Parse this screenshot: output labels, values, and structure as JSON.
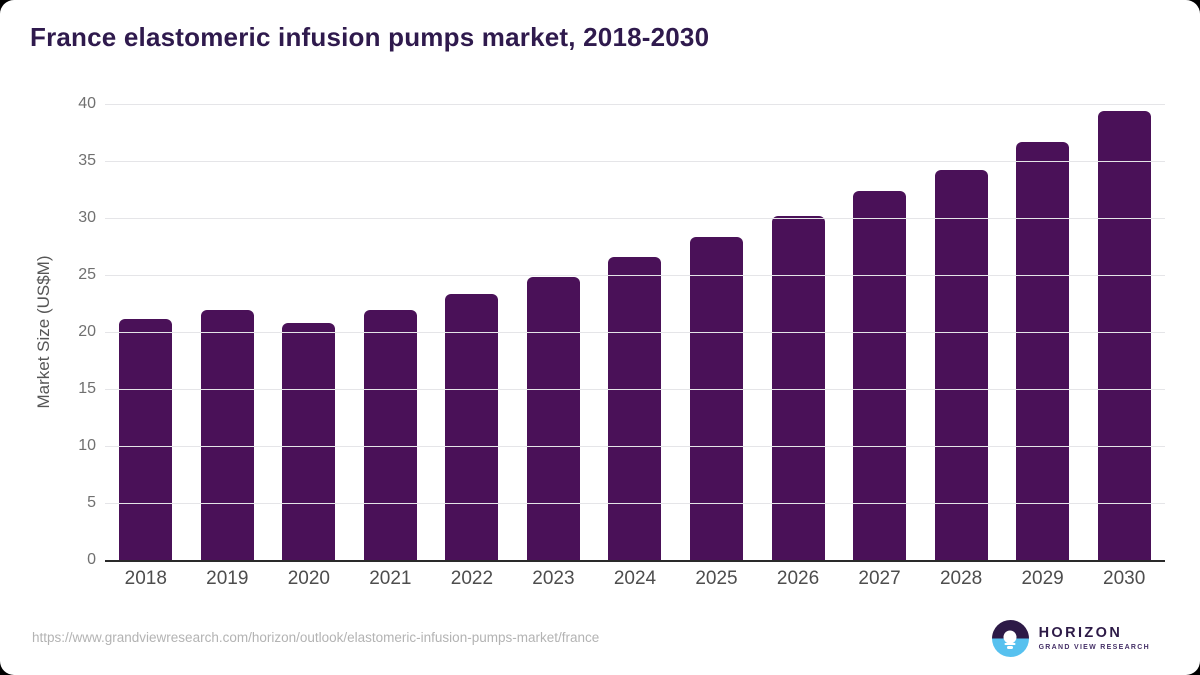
{
  "chart_data": {
    "type": "bar",
    "title": "France elastomeric infusion pumps market, 2018-2030",
    "xlabel": "",
    "ylabel": "Market Size (US$M)",
    "categories": [
      "2018",
      "2019",
      "2020",
      "2021",
      "2022",
      "2023",
      "2024",
      "2025",
      "2026",
      "2027",
      "2028",
      "2029",
      "2030"
    ],
    "values": [
      21.1,
      21.9,
      20.8,
      21.9,
      23.3,
      24.8,
      26.6,
      28.3,
      30.2,
      32.4,
      34.2,
      36.7,
      39.4
    ],
    "ylim": [
      0,
      40
    ],
    "y_ticks": [
      0,
      5,
      10,
      15,
      20,
      25,
      30,
      35,
      40
    ],
    "grid": "horizontal",
    "legend": "none",
    "bar_color": "#4a1158"
  },
  "theme": {
    "title_color": "#2f1a4d",
    "bar_color": "#4a1158",
    "logo_purple": "#2d1a47",
    "logo_blue": "#57c1ef"
  },
  "footer": {
    "source_url": "https://www.grandviewresearch.com/horizon/outlook/elastomeric-infusion-pumps-market/france",
    "logo": {
      "name": "HORIZON",
      "subtitle": "GRAND VIEW RESEARCH"
    }
  }
}
